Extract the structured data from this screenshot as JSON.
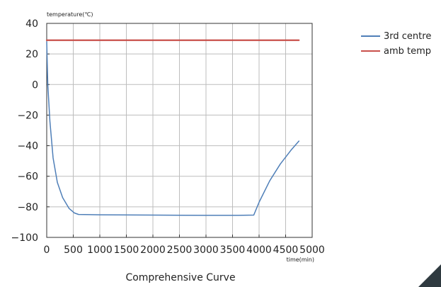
{
  "chart_data": {
    "type": "line",
    "title": "Comprehensive Curve",
    "ylabel": "temperature(℃)",
    "xlabel": "time(min)",
    "xlim": [
      0,
      5000
    ],
    "ylim": [
      -100,
      40
    ],
    "grid": true,
    "legend": "right",
    "x_ticks": [
      "0",
      "500",
      "1000",
      "1500",
      "2000",
      "2500",
      "3000",
      "3500",
      "4000",
      "4500",
      "5000"
    ],
    "y_ticks": [
      "40",
      "20",
      "0",
      "−20",
      "−40",
      "−60",
      "−80",
      "−100"
    ],
    "series": [
      {
        "name": "3rd centre",
        "color": "#4f7fb8",
        "x": [
          0,
          20,
          60,
          120,
          200,
          300,
          420,
          520,
          600,
          1000,
          2000,
          3000,
          3600,
          3900,
          4000,
          4200,
          4400,
          4600,
          4750
        ],
        "y": [
          28,
          0,
          -24,
          -48,
          -64,
          -74,
          -81,
          -84,
          -85,
          -85.2,
          -85.4,
          -85.6,
          -85.6,
          -85.4,
          -77,
          -63,
          -52,
          -43,
          -37
        ]
      },
      {
        "name": "amb temp",
        "color": "#c9504b",
        "x": [
          0,
          500,
          1000,
          1500,
          2000,
          2500,
          3000,
          3500,
          4000,
          4500,
          4750
        ],
        "y": [
          29,
          29,
          29,
          29,
          29,
          29,
          29,
          29,
          29,
          29,
          29
        ]
      }
    ]
  }
}
